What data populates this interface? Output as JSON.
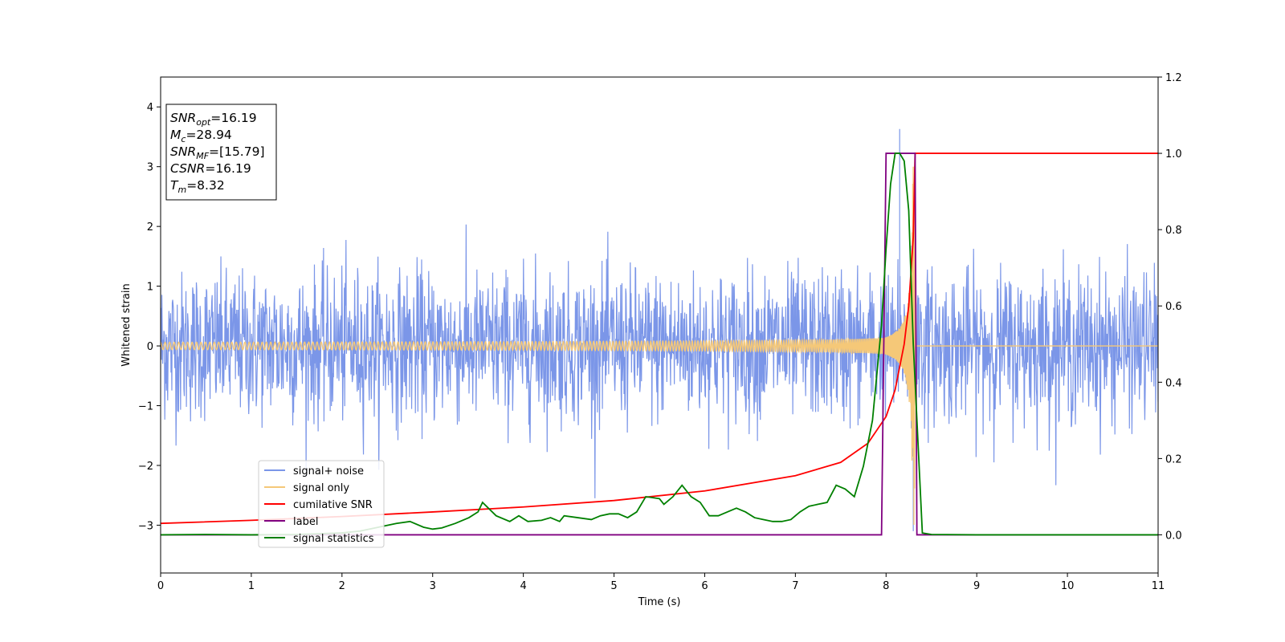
{
  "chart_data": {
    "type": "line",
    "xlabel": "Time (s)",
    "ylabel": "Whitened strain",
    "xlim": [
      0,
      11
    ],
    "ylim": [
      -3.8,
      4.5
    ],
    "y2lim": [
      -0.1,
      1.2
    ],
    "x_ticks": [
      "0",
      "1",
      "2",
      "3",
      "4",
      "5",
      "6",
      "7",
      "8",
      "9",
      "10",
      "11"
    ],
    "y_ticks": [
      "−3",
      "−2",
      "−1",
      "0",
      "1",
      "2",
      "3",
      "4"
    ],
    "y2_ticks": [
      "0.0",
      "0.2",
      "0.4",
      "0.6",
      "0.8",
      "1.0",
      "1.2"
    ],
    "grid": false,
    "legend_position": "lower-left",
    "info_box": [
      {
        "main": "SNR",
        "sub": "opt",
        "value": "=16.19"
      },
      {
        "main": "M",
        "sub": "c",
        "value": "=28.94"
      },
      {
        "main": "SNR",
        "sub": "MF",
        "value": "=[15.79]"
      },
      {
        "main": "CSNR",
        "sub": "",
        "value": "=16.19"
      },
      {
        "main": "T",
        "sub": "m",
        "value": "=8.32"
      }
    ],
    "series": [
      {
        "name": "signal+ noise",
        "axis": "left",
        "color": "#7b96e8",
        "style": "noise",
        "noise_std": 0.62,
        "peak": [
          8.15,
          3.63
        ],
        "dip": [
          8.3,
          -3.1
        ]
      },
      {
        "name": "signal only",
        "axis": "left",
        "color": "#f5c878",
        "style": "chirp",
        "merger_time": 8.32,
        "peak_amplitude": 3.0
      },
      {
        "name": "cumilative SNR",
        "axis": "right",
        "color": "#ff0000",
        "x": [
          0,
          1,
          2,
          3,
          4,
          5,
          6,
          7,
          7.5,
          7.8,
          8.0,
          8.1,
          8.2,
          8.25,
          8.3,
          8.32,
          11
        ],
        "y": [
          0.03,
          0.038,
          0.048,
          0.06,
          0.073,
          0.09,
          0.115,
          0.155,
          0.19,
          0.24,
          0.31,
          0.38,
          0.5,
          0.6,
          0.78,
          1.0,
          1.0
        ]
      },
      {
        "name": "label",
        "axis": "right",
        "color": "#800080",
        "x": [
          0,
          7.95,
          8.0,
          8.32,
          8.34,
          11
        ],
        "y": [
          0,
          0,
          1,
          1,
          0,
          0
        ]
      },
      {
        "name": "signal statistics",
        "axis": "right",
        "color": "#008000",
        "x": [
          0,
          0.5,
          1.0,
          1.5,
          2.0,
          2.2,
          2.4,
          2.6,
          2.75,
          2.9,
          3.0,
          3.1,
          3.25,
          3.4,
          3.5,
          3.55,
          3.7,
          3.85,
          3.95,
          4.05,
          4.2,
          4.3,
          4.4,
          4.45,
          4.6,
          4.75,
          4.85,
          4.95,
          5.05,
          5.15,
          5.25,
          5.35,
          5.5,
          5.55,
          5.65,
          5.75,
          5.85,
          5.95,
          6.05,
          6.15,
          6.25,
          6.35,
          6.45,
          6.55,
          6.65,
          6.75,
          6.85,
          6.95,
          7.05,
          7.15,
          7.25,
          7.35,
          7.45,
          7.55,
          7.65,
          7.75,
          7.85,
          7.95,
          8.0,
          8.05,
          8.1,
          8.15,
          8.2,
          8.25,
          8.3,
          8.4,
          8.5,
          9.0,
          11
        ],
        "y": [
          0.0,
          0.001,
          0.0,
          0.001,
          0.005,
          0.01,
          0.02,
          0.03,
          0.035,
          0.02,
          0.015,
          0.018,
          0.03,
          0.045,
          0.06,
          0.085,
          0.05,
          0.035,
          0.05,
          0.035,
          0.038,
          0.045,
          0.035,
          0.05,
          0.045,
          0.04,
          0.05,
          0.055,
          0.055,
          0.045,
          0.06,
          0.1,
          0.095,
          0.08,
          0.1,
          0.13,
          0.1,
          0.085,
          0.05,
          0.05,
          0.06,
          0.07,
          0.06,
          0.045,
          0.04,
          0.035,
          0.035,
          0.04,
          0.06,
          0.075,
          0.08,
          0.085,
          0.13,
          0.12,
          0.1,
          0.18,
          0.3,
          0.55,
          0.75,
          0.92,
          1.0,
          1.0,
          0.98,
          0.85,
          0.5,
          0.005,
          0.001,
          0.0,
          0.0
        ]
      }
    ]
  }
}
